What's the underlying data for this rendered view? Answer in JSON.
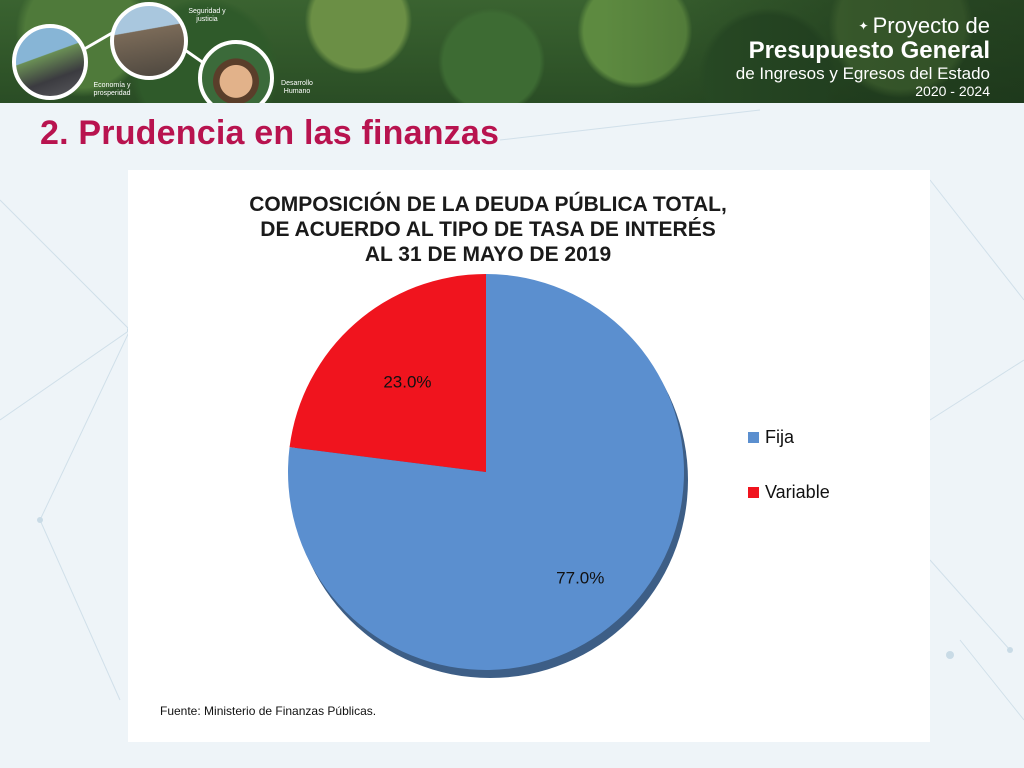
{
  "header": {
    "project_title": {
      "line1": "Proyecto de",
      "line2": "Presupuesto General",
      "line3": "de Ingresos y Egresos del Estado",
      "line4": "2020 - 2024"
    },
    "circles": [
      {
        "caption": "Economía y prosperidad"
      },
      {
        "caption": "Seguridad y justicia"
      },
      {
        "caption": "Desarrollo Humano"
      }
    ]
  },
  "slide_title": "2. Prudencia en las finanzas",
  "chart_data": {
    "type": "pie",
    "title": [
      "COMPOSICIÓN DE LA DEUDA PÚBLICA TOTAL,",
      "DE ACUERDO AL TIPO DE TASA DE INTERÉS",
      "AL 31 DE MAYO DE 2019"
    ],
    "slices": [
      {
        "name": "Fija",
        "value": 77.0,
        "label": "77.0%",
        "color": "#5b8fcf"
      },
      {
        "name": "Variable",
        "value": 23.0,
        "label": "23.0%",
        "color": "#f0141e"
      }
    ],
    "legend_position": "right",
    "source": "Fuente: Ministerio de Finanzas Públicas."
  },
  "colors": {
    "title_accent": "#b8134f",
    "fija": "#5b8fcf",
    "variable": "#f0141e"
  }
}
